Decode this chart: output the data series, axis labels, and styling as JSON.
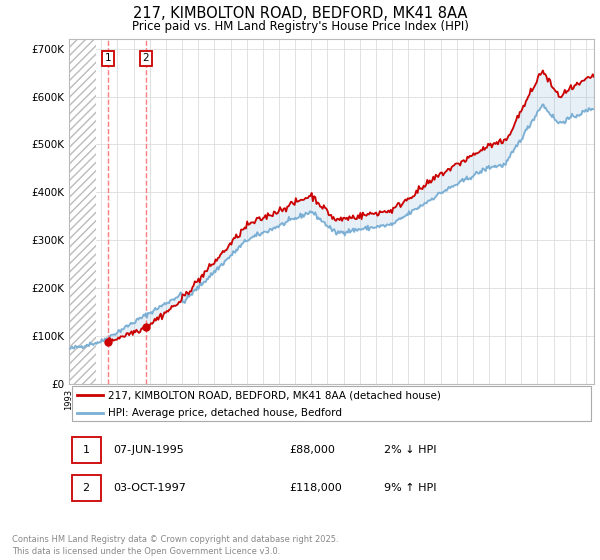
{
  "title_line1": "217, KIMBOLTON ROAD, BEDFORD, MK41 8AA",
  "title_line2": "Price paid vs. HM Land Registry's House Price Index (HPI)",
  "ylim": [
    0,
    720000
  ],
  "yticks": [
    0,
    100000,
    200000,
    300000,
    400000,
    500000,
    600000,
    700000
  ],
  "ytick_labels": [
    "£0",
    "£100K",
    "£200K",
    "£300K",
    "£400K",
    "£500K",
    "£600K",
    "£700K"
  ],
  "sale1_date": 1995.44,
  "sale1_price": 88000,
  "sale1_label": "1",
  "sale2_date": 1997.75,
  "sale2_price": 118000,
  "sale2_label": "2",
  "legend_line1": "217, KIMBOLTON ROAD, BEDFORD, MK41 8AA (detached house)",
  "legend_line2": "HPI: Average price, detached house, Bedford",
  "table_row1": [
    "1",
    "07-JUN-1995",
    "£88,000",
    "2% ↓ HPI"
  ],
  "table_row2": [
    "2",
    "03-OCT-1997",
    "£118,000",
    "9% ↑ HPI"
  ],
  "footer": "Contains HM Land Registry data © Crown copyright and database right 2025.\nThis data is licensed under the Open Government Licence v3.0.",
  "hpi_line_color": "#7bafd4",
  "property_line_color": "#cc0000",
  "sale_marker_color": "#cc0000",
  "sale_line_color": "#ff6666",
  "hatch_edgecolor": "#bbbbbb",
  "legend_border_color": "#aaaaaa",
  "table_box_color": "#cc0000",
  "footer_color": "#888888",
  "grid_color": "#dddddd",
  "xmin": 1993,
  "xmax": 2025.5
}
